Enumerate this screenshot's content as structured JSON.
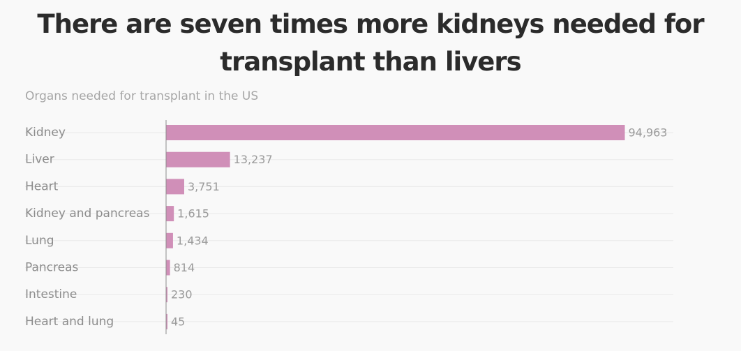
{
  "chart_data": {
    "type": "bar",
    "orientation": "horizontal",
    "title": "There are seven times more kidneys needed for transplant than livers",
    "title_lines": [
      "There are seven times more kidneys needed for",
      "transplant than livers"
    ],
    "subtitle": "Organs needed for transplant in the US",
    "categories": [
      "Kidney",
      "Liver",
      "Heart",
      "Kidney and pancreas",
      "Lung",
      "Pancreas",
      "Intestine",
      "Heart and lung"
    ],
    "values": [
      94963,
      13237,
      3751,
      1615,
      1434,
      814,
      230,
      45
    ],
    "value_labels": [
      "94,963",
      "13,237",
      "3,751",
      "1,615",
      "1,434",
      "814",
      "230",
      "45"
    ],
    "xlim": [
      0,
      105000
    ],
    "grid": true,
    "bar_color": "#d08fb8"
  }
}
